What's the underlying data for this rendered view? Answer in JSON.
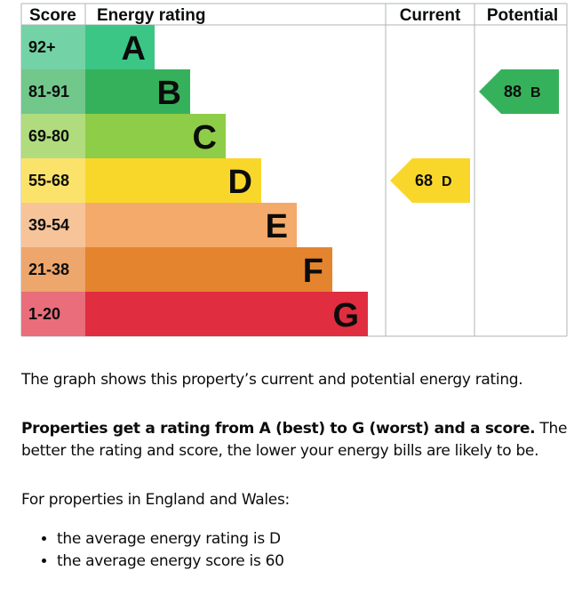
{
  "chart_data": {
    "type": "bar",
    "columns": {
      "score": "Score",
      "rating": "Energy rating",
      "current": "Current",
      "potential": "Potential"
    },
    "bands": [
      {
        "letter": "A",
        "range": "92+",
        "color": "#3bc686",
        "score_color": "#73d3a6"
      },
      {
        "letter": "B",
        "range": "81-91",
        "color": "#36b15b",
        "score_color": "#72c78b"
      },
      {
        "letter": "C",
        "range": "69-80",
        "color": "#8ecd47",
        "score_color": "#b0dc7e"
      },
      {
        "letter": "D",
        "range": "55-68",
        "color": "#f9d72a",
        "score_color": "#fbe26a"
      },
      {
        "letter": "E",
        "range": "39-54",
        "color": "#f4aa6b",
        "score_color": "#f7c49a"
      },
      {
        "letter": "F",
        "range": "21-38",
        "color": "#e5842f",
        "score_color": "#eda66c"
      },
      {
        "letter": "G",
        "range": "1-20",
        "color": "#e02d40",
        "score_color": "#e96d7a"
      }
    ],
    "current": {
      "score": "68",
      "letter": "D",
      "band": "D",
      "color": "#f9d72a"
    },
    "potential": {
      "score": "88",
      "letter": "B",
      "band": "B",
      "color": "#36b15b"
    }
  },
  "text": {
    "p1": "The graph shows this property’s current and potential energy rating.",
    "p2_bold": "Properties get a rating from A (best) to G (worst) and a score.",
    "p2_rest": " The better the rating and score, the lower your energy bills are likely to be.",
    "p3": "For properties in England and Wales:",
    "bullets": [
      "the average energy rating is D",
      "the average energy score is 60"
    ]
  }
}
